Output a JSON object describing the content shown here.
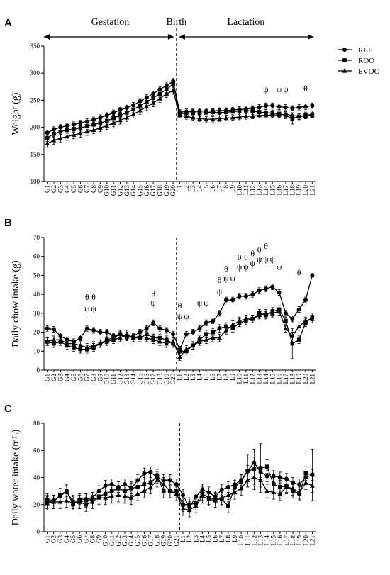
{
  "chart_data": [
    {
      "type": "line",
      "panel": "A",
      "ylabel": "Weight (g)",
      "phase_labels": [
        "Gestation",
        "Birth",
        "Lactation"
      ],
      "divider_after": "G20",
      "categories": [
        "G1",
        "G2",
        "G3",
        "G4",
        "G5",
        "G6",
        "G7",
        "G8",
        "G9",
        "G10",
        "G11",
        "G12",
        "G13",
        "G14",
        "G15",
        "G16",
        "G17",
        "G18",
        "G19",
        "G20",
        "L1",
        "L2",
        "L3",
        "L4",
        "L5",
        "L6",
        "L7",
        "L8",
        "L9",
        "L10",
        "L11",
        "L12",
        "L13",
        "L14",
        "L15",
        "L16",
        "L17",
        "L18",
        "L19",
        "L20",
        "L21"
      ],
      "ylim": [
        100,
        350
      ],
      "yticks": [
        100,
        150,
        200,
        250,
        300,
        350
      ],
      "series": [
        {
          "name": "REF",
          "marker": "circle",
          "color": "#000000",
          "values": [
            190,
            196,
            200,
            203,
            205,
            208,
            211,
            214,
            218,
            222,
            227,
            232,
            236,
            241,
            248,
            255,
            262,
            270,
            277,
            285,
            228,
            229,
            229,
            230,
            230,
            230,
            231,
            231,
            232,
            233,
            234,
            235,
            237,
            240,
            240,
            238,
            237,
            235,
            237,
            238,
            240
          ],
          "errors": [
            5,
            5,
            5,
            5,
            5,
            5,
            5,
            5,
            5,
            5,
            5,
            5,
            5,
            5,
            5,
            5,
            5,
            5,
            5,
            5,
            5,
            5,
            5,
            5,
            5,
            5,
            5,
            5,
            5,
            5,
            5,
            5,
            5,
            5,
            5,
            5,
            5,
            5,
            5,
            5,
            5
          ]
        },
        {
          "name": "ROO",
          "marker": "square",
          "color": "#000000",
          "values": [
            180,
            188,
            192,
            195,
            197,
            199,
            202,
            205,
            208,
            212,
            217,
            222,
            227,
            233,
            240,
            247,
            254,
            262,
            270,
            280,
            225,
            226,
            227,
            226,
            227,
            228,
            227,
            228,
            229,
            230,
            231,
            230,
            228,
            227,
            226,
            225,
            222,
            216,
            220,
            222,
            224
          ],
          "errors": [
            6,
            6,
            6,
            6,
            6,
            6,
            6,
            6,
            6,
            6,
            6,
            6,
            6,
            6,
            6,
            6,
            6,
            6,
            6,
            6,
            6,
            6,
            6,
            6,
            6,
            6,
            6,
            6,
            6,
            6,
            6,
            6,
            6,
            6,
            6,
            6,
            6,
            10,
            6,
            6,
            6
          ]
        },
        {
          "name": "EVOO",
          "marker": "triangle",
          "color": "#000000",
          "values": [
            170,
            176,
            180,
            183,
            186,
            189,
            192,
            195,
            199,
            203,
            208,
            213,
            218,
            224,
            231,
            238,
            245,
            253,
            262,
            268,
            222,
            220,
            218,
            216,
            215,
            215,
            216,
            217,
            218,
            219,
            220,
            221,
            222,
            222,
            223,
            223,
            224,
            222,
            220,
            221,
            222
          ],
          "errors": [
            7,
            7,
            7,
            7,
            7,
            7,
            7,
            7,
            7,
            7,
            7,
            7,
            7,
            7,
            7,
            7,
            7,
            7,
            7,
            7,
            5,
            5,
            5,
            5,
            5,
            5,
            5,
            5,
            5,
            5,
            5,
            5,
            5,
            5,
            5,
            5,
            5,
            5,
            5,
            5,
            5
          ]
        }
      ],
      "annotations": [
        {
          "x": "L14",
          "y": 265,
          "text": "ψ"
        },
        {
          "x": "L16",
          "y": 265,
          "text": "ψ"
        },
        {
          "x": "L17",
          "y": 265,
          "text": "ψ"
        },
        {
          "x": "L20",
          "y": 267,
          "text": "θ"
        }
      ]
    },
    {
      "type": "line",
      "panel": "B",
      "ylabel": "Daily chow intake (g)",
      "divider_after": "G20",
      "categories": [
        "G1",
        "G2",
        "G3",
        "G4",
        "G5",
        "G6",
        "G7",
        "G8",
        "G9",
        "G10",
        "G11",
        "G12",
        "G13",
        "G14",
        "G15",
        "G16",
        "G17",
        "G18",
        "G19",
        "G20",
        "L1",
        "L2",
        "L3",
        "L4",
        "L5",
        "L6",
        "L7",
        "L8",
        "L9",
        "L10",
        "L11",
        "L12",
        "L13",
        "L14",
        "L15",
        "L16",
        "L17",
        "L18",
        "L19",
        "L20",
        "L21"
      ],
      "ylim": [
        0,
        70
      ],
      "yticks": [
        0,
        10,
        20,
        30,
        40,
        50,
        60,
        70
      ],
      "series": [
        {
          "marker": "circle",
          "color": "#000000",
          "values": [
            22,
            21.5,
            18,
            16,
            15,
            17,
            22,
            21,
            20,
            20,
            18,
            19,
            17,
            18,
            20,
            22,
            25,
            22,
            21,
            19,
            11,
            19,
            20,
            22,
            25,
            26,
            30,
            37,
            37,
            39,
            39,
            40,
            42,
            43,
            44,
            41,
            30,
            27,
            32,
            37,
            50
          ],
          "errors": [
            1.5,
            1.5,
            1.5,
            1.5,
            1.5,
            1.5,
            1.5,
            1.5,
            1.5,
            1.5,
            1.5,
            1.5,
            1.5,
            1.5,
            1.5,
            1.5,
            1.5,
            1.5,
            1.5,
            1.5,
            1.5,
            1.5,
            1.5,
            1.5,
            1.5,
            1.5,
            1.5,
            1.5,
            1.5,
            1.5,
            1.5,
            1.5,
            1.5,
            1.5,
            1.5,
            1.5,
            1.5,
            1.5,
            1.5,
            1.5,
            1
          ]
        },
        {
          "marker": "square",
          "color": "#000000",
          "values": [
            15,
            14,
            15,
            13,
            12,
            11,
            11,
            12,
            14,
            16,
            17,
            19,
            18,
            17,
            17,
            19,
            17,
            17,
            16,
            14,
            10,
            10,
            13,
            16,
            19,
            20,
            22,
            23,
            22,
            25,
            26,
            27,
            30,
            29,
            31,
            32,
            26,
            14,
            16,
            25,
            28
          ],
          "errors": [
            2,
            2,
            2,
            2,
            2,
            2,
            2,
            2,
            2,
            2,
            2,
            2,
            2,
            2,
            2,
            2,
            2,
            2,
            2,
            2,
            2,
            2,
            2,
            2,
            2,
            2,
            2,
            2,
            2,
            2,
            2,
            2,
            2,
            2,
            2,
            2,
            2,
            8,
            2,
            2,
            2
          ]
        },
        {
          "marker": "triangle",
          "color": "#000000",
          "values": [
            15,
            16,
            16,
            14,
            14,
            13,
            12,
            13,
            14,
            15,
            16,
            17,
            19,
            17,
            18,
            17,
            16,
            15,
            14,
            15,
            7,
            11,
            13,
            15,
            16,
            17,
            17,
            21,
            24,
            26,
            27,
            27,
            29,
            30,
            30,
            31,
            22,
            18,
            23,
            26,
            27
          ],
          "errors": [
            2,
            2,
            2,
            2,
            2,
            2,
            2,
            2,
            2,
            2,
            2,
            2,
            2,
            2,
            2,
            2,
            2,
            2,
            2,
            2,
            2,
            2,
            2,
            2,
            2,
            2,
            2,
            2,
            2,
            2,
            2,
            2,
            2,
            2,
            2,
            2,
            2,
            2,
            2,
            2,
            2
          ]
        }
      ],
      "annotations": [
        {
          "x": "G7",
          "y": 37,
          "text": "θ"
        },
        {
          "x": "G7",
          "y": 31,
          "text": "ψ"
        },
        {
          "x": "G8",
          "y": 37,
          "text": "θ"
        },
        {
          "x": "G8",
          "y": 31,
          "text": "ψ"
        },
        {
          "x": "G17",
          "y": 39,
          "text": "θ"
        },
        {
          "x": "G17",
          "y": 34,
          "text": "ψ"
        },
        {
          "x": "L1",
          "y": 32.5,
          "text": "θ"
        },
        {
          "x": "L1",
          "y": 27,
          "text": "ψ"
        },
        {
          "x": "L2",
          "y": 27,
          "text": "ψ"
        },
        {
          "x": "L4",
          "y": 34,
          "text": "ψ"
        },
        {
          "x": "L5",
          "y": 34,
          "text": "ψ"
        },
        {
          "x": "L7",
          "y": 46,
          "text": "θ"
        },
        {
          "x": "L7",
          "y": 40,
          "text": "ψ"
        },
        {
          "x": "L8",
          "y": 52,
          "text": "θ"
        },
        {
          "x": "L8",
          "y": 47,
          "text": "ψ"
        },
        {
          "x": "L9",
          "y": 47,
          "text": "ψ"
        },
        {
          "x": "L10",
          "y": 58,
          "text": "θ"
        },
        {
          "x": "L10",
          "y": 53,
          "text": "ψ"
        },
        {
          "x": "L11",
          "y": 58,
          "text": "θ"
        },
        {
          "x": "L11",
          "y": 53,
          "text": "ψ"
        },
        {
          "x": "L12",
          "y": 60,
          "text": "θ"
        },
        {
          "x": "L12",
          "y": 55,
          "text": "ψ"
        },
        {
          "x": "L13",
          "y": 62,
          "text": "θ"
        },
        {
          "x": "L13",
          "y": 57,
          "text": "ψ"
        },
        {
          "x": "L14",
          "y": 64,
          "text": "θ"
        },
        {
          "x": "L14",
          "y": 57,
          "text": "ψ"
        },
        {
          "x": "L15",
          "y": 57,
          "text": "ψ"
        },
        {
          "x": "L16",
          "y": 53,
          "text": "ψ"
        },
        {
          "x": "L19",
          "y": 50,
          "text": "θ"
        }
      ]
    },
    {
      "type": "line",
      "panel": "C",
      "ylabel": "Daily water intake (mL)",
      "divider_after": "G21",
      "categories": [
        "G1",
        "G2",
        "G3",
        "G4",
        "G5",
        "G6",
        "G7",
        "G8",
        "G9",
        "G10",
        "G11",
        "G12",
        "G13",
        "G14",
        "G15",
        "G16",
        "G17",
        "G18",
        "G19",
        "G20",
        "G21",
        "L1",
        "L2",
        "L3",
        "L4",
        "L5",
        "L6",
        "L7",
        "L8",
        "L9",
        "L10",
        "L11",
        "L12",
        "L13",
        "L14",
        "L15",
        "L16",
        "L17",
        "L18",
        "L19",
        "L20",
        "L21"
      ],
      "ylim": [
        0,
        80
      ],
      "yticks": [
        0,
        20,
        40,
        60,
        80
      ],
      "series": [
        {
          "marker": "circle",
          "color": "#000000",
          "values": [
            24,
            23,
            26,
            30,
            20,
            24,
            24,
            25,
            30,
            34,
            35,
            33,
            35,
            32,
            38,
            43,
            44,
            40,
            38,
            38,
            35,
            27,
            18,
            26,
            31,
            29,
            26,
            31,
            33,
            35,
            38,
            45,
            51,
            44,
            41,
            41,
            40,
            39,
            36,
            35,
            40,
            42
          ],
          "errors": [
            4,
            4,
            4,
            4,
            4,
            4,
            4,
            4,
            4,
            4,
            4,
            4,
            4,
            4,
            4,
            4,
            4,
            4,
            4,
            4,
            4,
            4,
            4,
            4,
            4,
            4,
            4,
            4,
            4,
            4,
            4,
            4,
            4,
            4,
            4,
            4,
            4,
            4,
            4,
            4,
            4,
            4
          ]
        },
        {
          "marker": "square",
          "color": "#000000",
          "values": [
            22,
            22,
            27,
            30,
            22,
            22,
            20,
            22,
            26,
            28,
            30,
            32,
            30,
            32,
            33,
            35,
            36,
            41,
            30,
            30,
            30,
            20,
            20,
            21,
            28,
            25,
            24,
            24,
            19,
            33,
            37,
            45,
            46,
            47,
            48,
            35,
            33,
            34,
            30,
            28,
            43,
            42
          ],
          "errors": [
            5,
            5,
            5,
            5,
            5,
            5,
            5,
            5,
            5,
            5,
            5,
            5,
            5,
            5,
            5,
            5,
            5,
            5,
            5,
            5,
            5,
            5,
            5,
            5,
            5,
            5,
            5,
            5,
            5,
            5,
            5,
            12,
            15,
            18,
            5,
            5,
            5,
            5,
            5,
            5,
            5,
            19
          ]
        },
        {
          "marker": "triangle",
          "color": "#000000",
          "values": [
            21,
            22,
            22,
            23,
            21,
            22,
            23,
            24,
            25,
            25,
            26,
            27,
            26,
            25,
            28,
            30,
            33,
            38,
            35,
            30,
            28,
            17,
            16,
            19,
            26,
            24,
            23,
            25,
            27,
            29,
            32,
            38,
            40,
            38,
            30,
            29,
            28,
            33,
            32,
            29,
            36,
            34
          ],
          "errors": [
            5,
            5,
            5,
            5,
            5,
            5,
            5,
            5,
            5,
            5,
            5,
            5,
            5,
            5,
            5,
            5,
            5,
            5,
            5,
            5,
            5,
            5,
            5,
            5,
            5,
            5,
            5,
            5,
            5,
            5,
            5,
            5,
            5,
            5,
            5,
            5,
            5,
            5,
            5,
            5,
            5,
            5
          ]
        }
      ],
      "annotations": []
    }
  ]
}
